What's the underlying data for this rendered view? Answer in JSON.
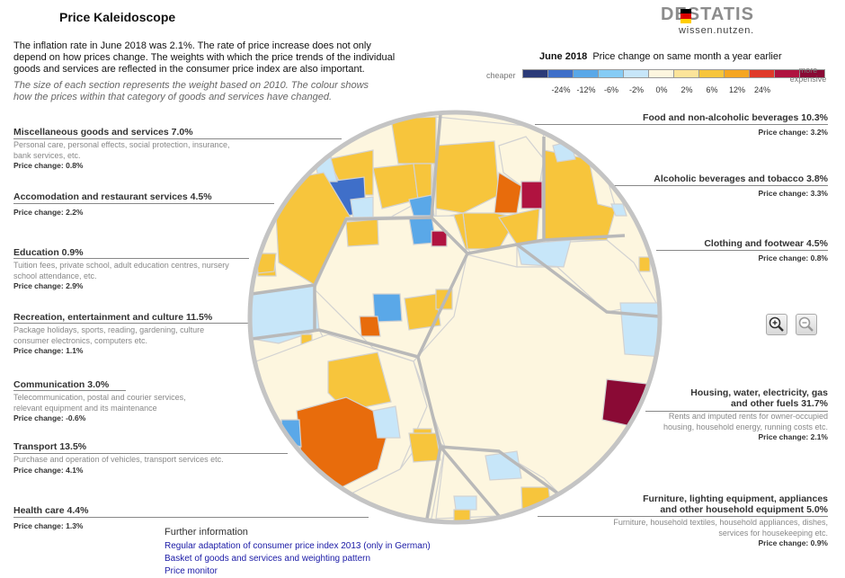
{
  "app": {
    "title": "Price Kaleidoscope"
  },
  "logo": {
    "wordmark": "DESTATIS",
    "tagline": "wissen.nutzen."
  },
  "intro": {
    "text": "The inflation rate in June 2018 was 2.1%. The rate of price increase does not only depend on how prices change. The weights with which the price trends of the individual goods and services are reflected in the consumer price index are also important.",
    "note": "The size of each section represents the weight based on 2010. The colour shows how the prices within that category of goods and services have changed."
  },
  "legend": {
    "month": "June 2018",
    "title": "Price change on same month a year earlier",
    "cheaper": "cheaper",
    "more": "more expensive",
    "colors": [
      "#2b3a78",
      "#3f6fc9",
      "#5aa8e8",
      "#86ccf5",
      "#c7e6f9",
      "#fdf6df",
      "#fce49a",
      "#f7c53c",
      "#f5a623",
      "#e03a2a",
      "#b01340",
      "#8a0a35"
    ],
    "ticks": [
      "-24%",
      "-12%",
      "-6%",
      "-2%",
      "0%",
      "2%",
      "6%",
      "12%",
      "24%"
    ]
  },
  "categories": {
    "misc": {
      "name": "Miscellaneous goods and services 7.0%",
      "desc": "Personal care, personal effects, social protection, insurance, bank services, etc.",
      "change": "Price change: 0.8%"
    },
    "accom": {
      "name": "Accomodation and restaurant services 4.5%",
      "change": "Price change: 2.2%"
    },
    "edu": {
      "name": "Education 0.9%",
      "desc": "Tuition fees, private school, adult education centres, nursery school attendance, etc.",
      "change": "Price change: 2.9%"
    },
    "recr": {
      "name": "Recreation, entertainment and culture 11.5%",
      "desc": "Package holidays, sports, reading, gardening, culture consumer electronics, computers etc.",
      "change": "Price change: 1.1%"
    },
    "comm": {
      "name": "Communication 3.0%",
      "desc": "Telecommunication, postal and courier services, relevant equipment and its maintenance",
      "change": "Price change: -0.6%"
    },
    "transport": {
      "name": "Transport 13.5%",
      "desc": "Purchase and operation of vehicles, transport services etc.",
      "change": "Price change: 4.1%"
    },
    "health": {
      "name": "Health care 4.4%",
      "change": "Price change: 1.3%"
    },
    "food": {
      "name": "Food and non-alcoholic beverages 10.3%",
      "change": "Price change: 3.2%"
    },
    "alcohol": {
      "name": "Alcoholic beverages and tobacco 3.8%",
      "change": "Price change: 3.3%"
    },
    "clothing": {
      "name": "Clothing and footwear 4.5%",
      "change": "Price change: 0.8%"
    },
    "housing": {
      "name1": "Housing, water, electricity, gas",
      "name2": "and other fuels 31.7%",
      "desc": "Rents and imputed rents for owner-occupied housing, household energy, running costs etc.",
      "change": "Price change: 2.1%"
    },
    "furniture": {
      "name1": "Furniture, lighting equipment, appliances",
      "name2": "and other household equipment 5.0%",
      "desc": "Furniture, household textiles, household appliances, dishes, services for housekeeping etc.",
      "change": "Price change: 0.9%"
    }
  },
  "further": {
    "title": "Further information",
    "links": [
      "Regular adaptation of consumer price index 2013 (only in German)",
      "Basket of goods and services and weighting pattern",
      "Price monitor"
    ]
  },
  "controls": {
    "zoom_in_icon": "zoom-in-icon",
    "zoom_out_icon": "zoom-out-icon"
  }
}
